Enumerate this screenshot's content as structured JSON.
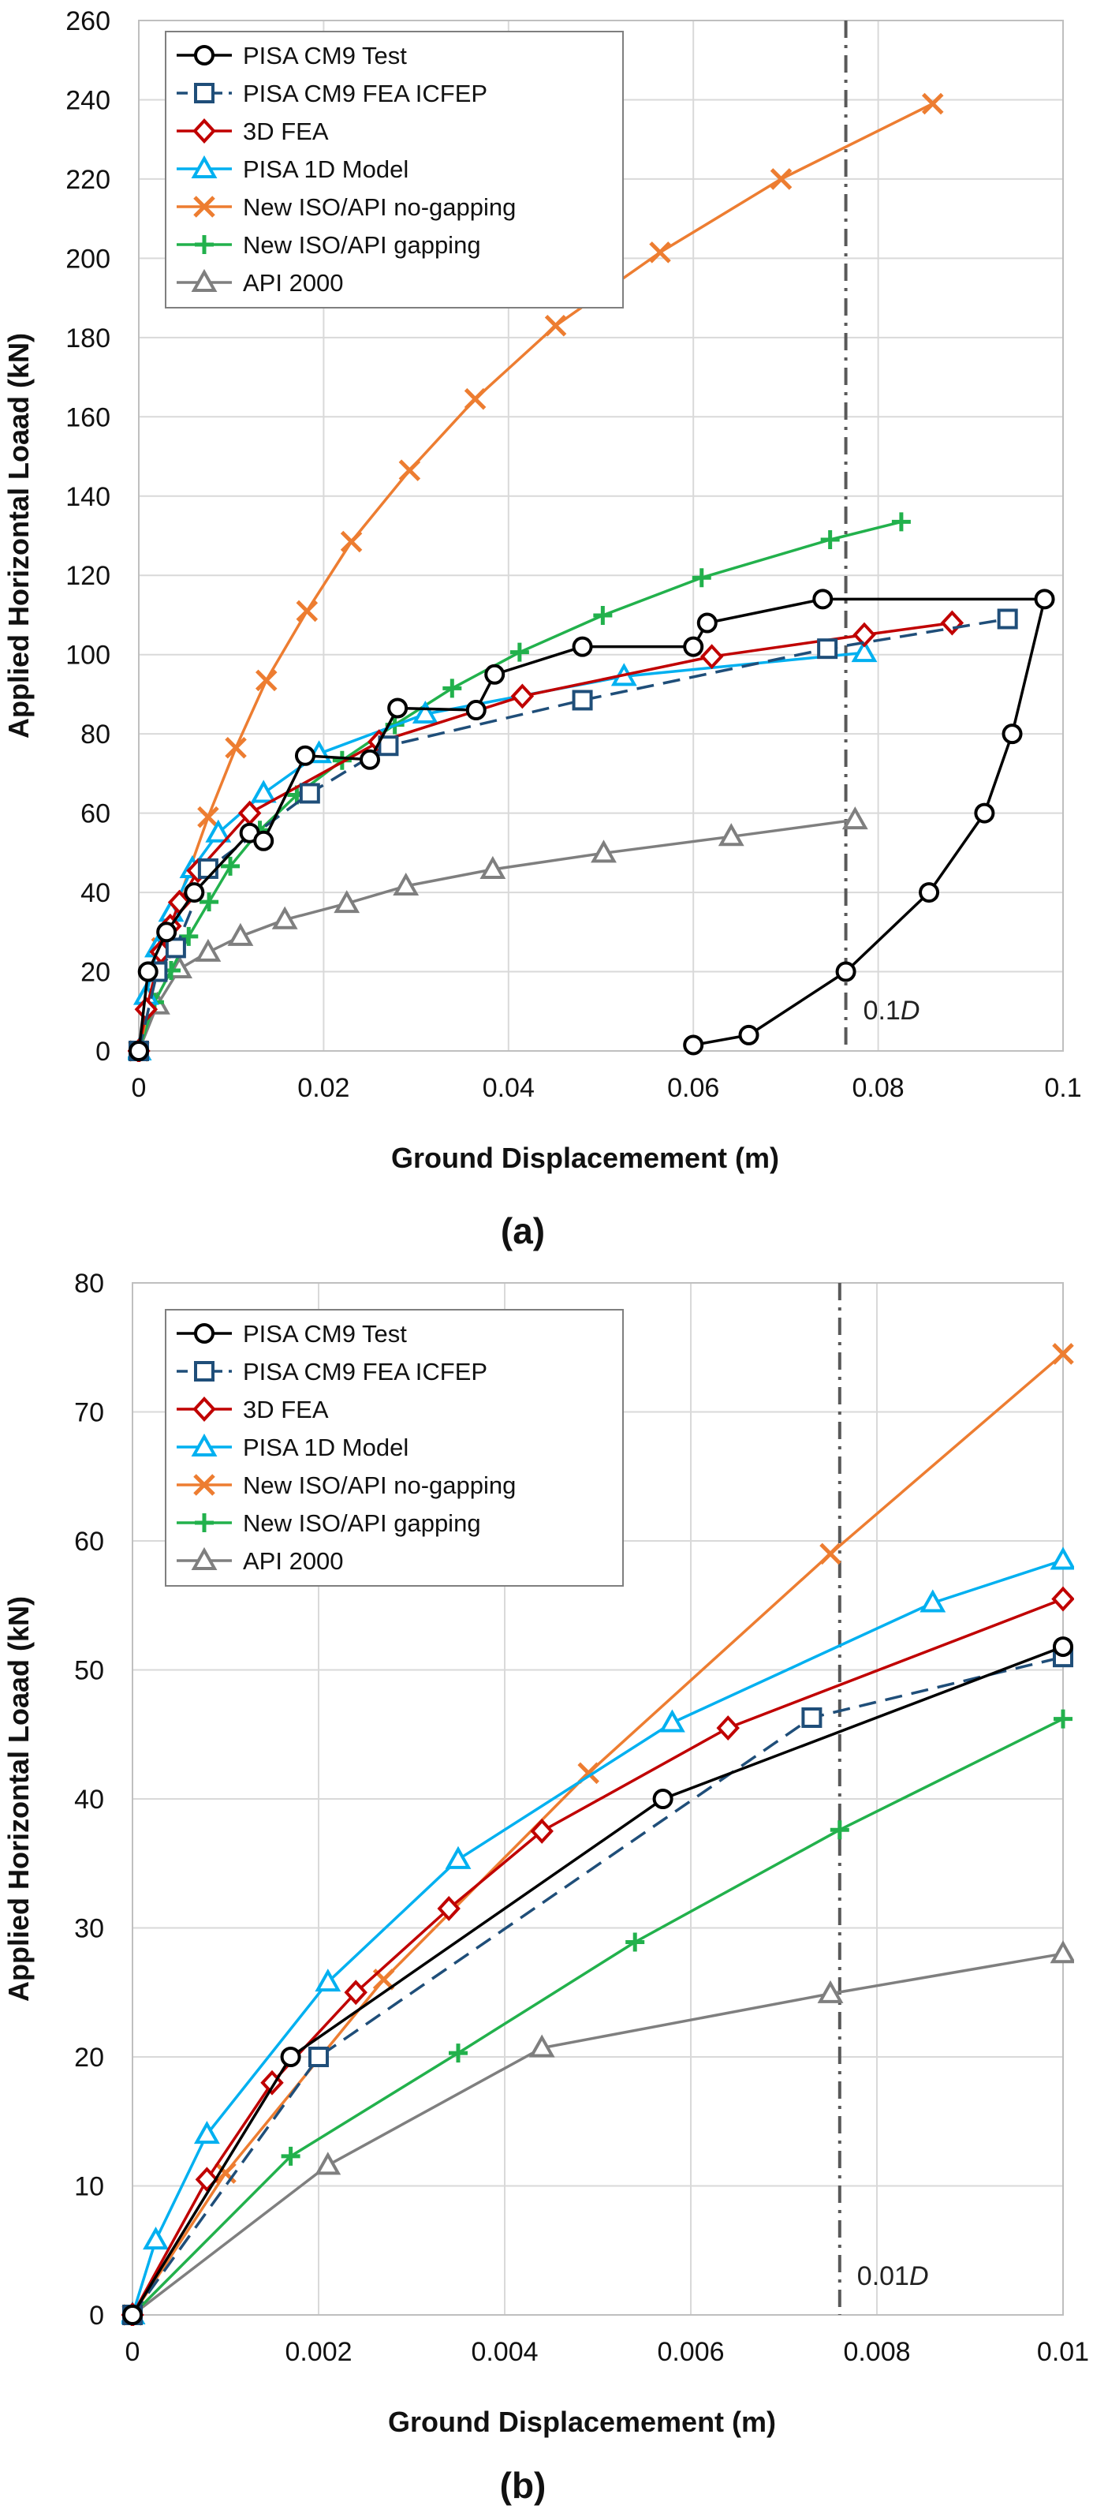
{
  "chart_data": [
    {
      "type": "line",
      "panel_label": "(a)",
      "xlabel": "Ground Displacemement (m)",
      "ylabel": "Applied Horizontal Loaad (kN)",
      "xlim": [
        0,
        0.1
      ],
      "ylim": [
        0,
        260
      ],
      "x_ticks": [
        "0",
        "0.02",
        "0.04",
        "0.06",
        "0.08",
        "0.1"
      ],
      "y_ticks": [
        "0",
        "20",
        "40",
        "60",
        "80",
        "100",
        "120",
        "140",
        "160",
        "180",
        "200",
        "220",
        "240",
        "260"
      ],
      "grid": true,
      "legend_position": "top-left",
      "vline": {
        "x": 0.0765,
        "label": "0.1",
        "label_italic": "D"
      },
      "series": [
        {
          "name": "PISA CM9 Test",
          "color": "#000000",
          "marker": "circle",
          "dash": "solid",
          "x": [
            0,
            0.001,
            0.003,
            0.006,
            0.012,
            0.0135,
            0.018,
            0.025,
            0.028,
            0.0365,
            0.0385,
            0.048,
            0.06,
            0.0615,
            0.074,
            0.098,
            0.0945,
            0.0915,
            0.0855,
            0.0765,
            0.066,
            0.06
          ],
          "y": [
            0,
            20,
            30,
            40,
            55,
            53,
            74.5,
            73.5,
            86.5,
            86,
            95,
            102,
            102,
            108,
            114,
            114,
            80,
            60,
            40,
            20,
            4,
            1.5
          ]
        },
        {
          "name": "PISA CM9 FEA ICFEP",
          "color": "#1f4e79",
          "marker": "square",
          "dash": "dashed",
          "x": [
            0,
            0.002,
            0.004,
            0.0075,
            0.0185,
            0.027,
            0.048,
            0.0745,
            0.094
          ],
          "y": [
            0,
            20,
            26,
            46,
            65,
            77,
            88.5,
            101.5,
            109
          ]
        },
        {
          "name": "3D FEA",
          "color": "#c00000",
          "marker": "diamond",
          "dash": "solid",
          "x": [
            0,
            0.0008,
            0.0024,
            0.0034,
            0.0044,
            0.0064,
            0.012,
            0.026,
            0.0415,
            0.062,
            0.0785,
            0.088
          ],
          "y": [
            0,
            10.5,
            25,
            31.5,
            37.5,
            45.5,
            60,
            78,
            89.5,
            99.5,
            105,
            108
          ]
        },
        {
          "name": "PISA 1D Model",
          "color": "#00b0f0",
          "marker": "triangle",
          "dash": "solid",
          "x": [
            0,
            0.0008,
            0.002,
            0.0035,
            0.0058,
            0.0086,
            0.0135,
            0.0195,
            0.031,
            0.0525,
            0.0785
          ],
          "y": [
            0,
            14,
            26,
            35,
            46,
            55,
            65,
            75,
            85,
            94.5,
            100.5
          ]
        },
        {
          "name": "New ISO/API no-gapping",
          "color": "#ed7d31",
          "marker": "x",
          "dash": "solid",
          "x": [
            0,
            0.0025,
            0.0075,
            0.0105,
            0.0138,
            0.0182,
            0.023,
            0.0293,
            0.0364,
            0.0451,
            0.0564,
            0.0695,
            0.0859
          ],
          "y": [
            0,
            26,
            59,
            76.5,
            93.5,
            111,
            128.5,
            146.5,
            164.5,
            183,
            201.5,
            220,
            239
          ]
        },
        {
          "name": "New ISO/API gapping",
          "color": "#22b14c",
          "marker": "plus",
          "dash": "solid",
          "x": [
            0,
            0.0017,
            0.0035,
            0.0054,
            0.0076,
            0.0099,
            0.0131,
            0.0171,
            0.022,
            0.0277,
            0.0339,
            0.0412,
            0.0502,
            0.0609,
            0.0748,
            0.0825
          ],
          "y": [
            0,
            12.3,
            20.3,
            28.9,
            37.6,
            46.6,
            55.7,
            64.6,
            73.3,
            82.3,
            91.5,
            100.6,
            109.9,
            119.4,
            129,
            133.5
          ]
        },
        {
          "name": "API 2000",
          "color": "#7f7f7f",
          "marker": "triangle",
          "dash": "solid",
          "x": [
            0,
            0.002,
            0.0044,
            0.0075,
            0.011,
            0.0158,
            0.0225,
            0.0289,
            0.0383,
            0.0503,
            0.0641,
            0.0775
          ],
          "y": [
            0,
            11.6,
            20.7,
            24.9,
            28.9,
            33.1,
            37.2,
            41.6,
            45.8,
            49.9,
            54.1,
            58.3
          ]
        }
      ]
    },
    {
      "type": "line",
      "panel_label": "(b)",
      "xlabel": "Ground Displacemement (m)",
      "ylabel": "Applied Horizontal Loaad (kN)",
      "xlim": [
        0,
        0.01
      ],
      "ylim": [
        0,
        80
      ],
      "x_ticks": [
        "0",
        "0.002",
        "0.004",
        "0.006",
        "0.008",
        "0.01"
      ],
      "y_ticks": [
        "0",
        "10",
        "20",
        "30",
        "40",
        "50",
        "60",
        "70",
        "80"
      ],
      "grid": true,
      "legend_position": "top-left",
      "vline": {
        "x": 0.0076,
        "label": "0.01",
        "label_italic": "D"
      },
      "series": [
        {
          "name": "PISA CM9 Test",
          "color": "#000000",
          "marker": "circle",
          "dash": "solid",
          "x": [
            0,
            0.0017,
            0.0057,
            0.01
          ],
          "y": [
            0,
            20,
            40,
            51.8
          ]
        },
        {
          "name": "PISA CM9 FEA ICFEP",
          "color": "#1f4e79",
          "marker": "square",
          "dash": "dashed",
          "x": [
            0,
            0.002,
            0.0073,
            0.01
          ],
          "y": [
            0,
            20,
            46.3,
            51
          ]
        },
        {
          "name": "3D FEA",
          "color": "#c00000",
          "marker": "diamond",
          "dash": "solid",
          "x": [
            0,
            0.0008,
            0.0015,
            0.0024,
            0.0034,
            0.0044,
            0.0064,
            0.01
          ],
          "y": [
            0,
            10.5,
            18,
            25,
            31.5,
            37.5,
            45.5,
            55.5
          ]
        },
        {
          "name": "PISA 1D Model",
          "color": "#00b0f0",
          "marker": "triangle",
          "dash": "solid",
          "x": [
            0,
            0.00025,
            0.0008,
            0.0021,
            0.0035,
            0.0058,
            0.0086,
            0.01
          ],
          "y": [
            0,
            5.8,
            14,
            25.8,
            35.3,
            45.9,
            55.2,
            58.5
          ]
        },
        {
          "name": "New ISO/API no-gapping",
          "color": "#ed7d31",
          "marker": "x",
          "dash": "solid",
          "x": [
            0,
            0.001,
            0.0027,
            0.0049,
            0.0075,
            0.01
          ],
          "y": [
            0,
            11,
            26,
            42,
            59,
            74.5
          ]
        },
        {
          "name": "New ISO/API gapping",
          "color": "#22b14c",
          "marker": "plus",
          "dash": "solid",
          "x": [
            0,
            0.0017,
            0.0035,
            0.0054,
            0.0076,
            0.01
          ],
          "y": [
            0,
            12.3,
            20.3,
            28.9,
            37.6,
            46.2
          ]
        },
        {
          "name": "API 2000",
          "color": "#7f7f7f",
          "marker": "triangle",
          "dash": "solid",
          "x": [
            0,
            0.0021,
            0.0044,
            0.0075,
            0.01
          ],
          "y": [
            0,
            11.6,
            20.7,
            24.9,
            28
          ]
        }
      ]
    }
  ]
}
